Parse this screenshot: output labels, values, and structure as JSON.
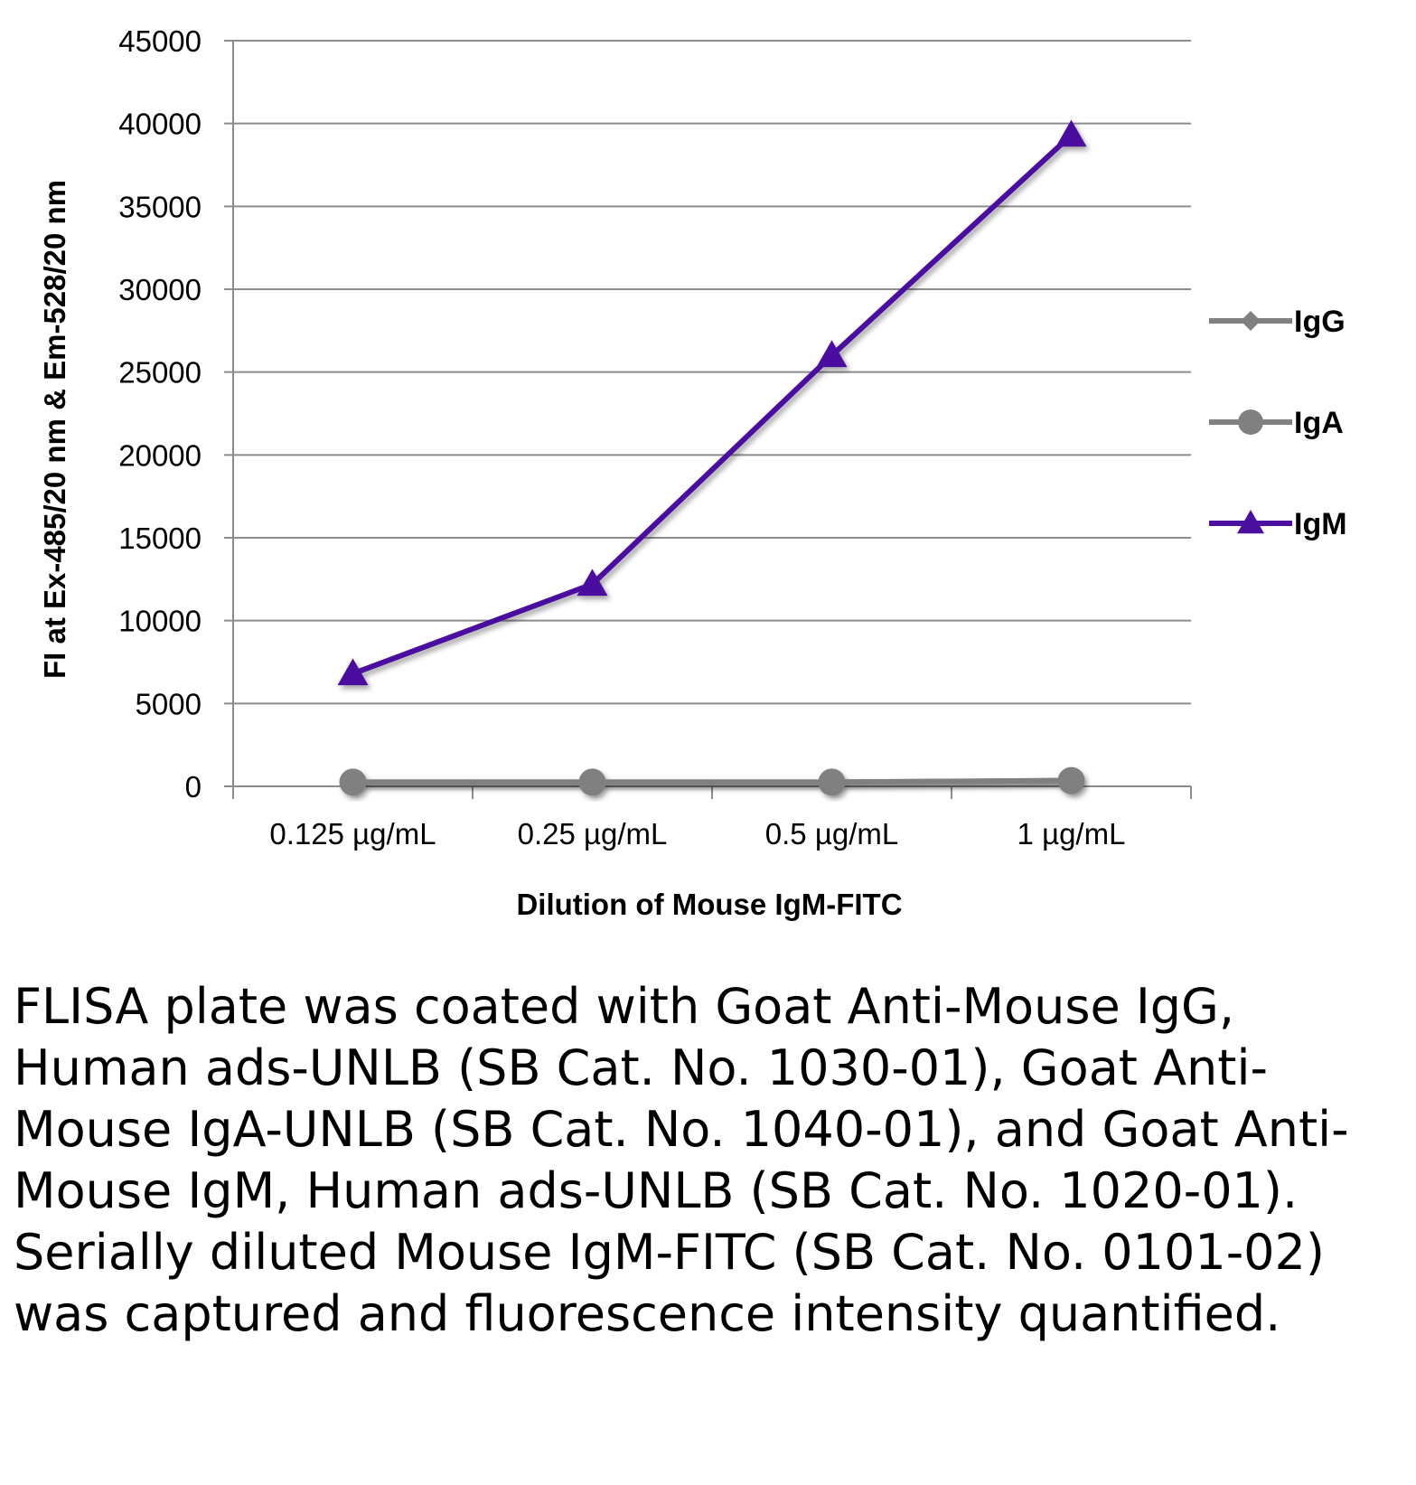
{
  "chart_data": {
    "type": "line",
    "categories": [
      "0.125 µg/mL",
      "0.25 µg/mL",
      "0.5 µg/mL",
      "1 µg/mL"
    ],
    "xlabel": "Dilution of Mouse IgM-FITC",
    "ylabel": "FI at Ex-485/20 nm & Em-528/20 nm",
    "ylim": [
      0,
      45000
    ],
    "yticks": [
      0,
      5000,
      10000,
      15000,
      20000,
      25000,
      30000,
      35000,
      40000,
      45000
    ],
    "grid": true,
    "legend": "right",
    "series": [
      {
        "name": "IgG",
        "values": [
          250,
          250,
          250,
          350
        ],
        "color": "#808080",
        "marker": "diamond"
      },
      {
        "name": "IgA",
        "values": [
          250,
          250,
          250,
          350
        ],
        "color": "#808080",
        "marker": "circle"
      },
      {
        "name": "IgM",
        "values": [
          6800,
          12200,
          26000,
          39300
        ],
        "color": "#4b0fa0",
        "marker": "triangle"
      }
    ]
  },
  "caption": "FLISA plate was coated with Goat Anti-Mouse IgG, Human ads-UNLB (SB Cat. No. 1030-01), Goat Anti-Mouse IgA-UNLB (SB Cat. No. 1040-01), and Goat Anti-Mouse IgM, Human ads-UNLB (SB Cat. No. 1020-01). Serially diluted Mouse IgM-FITC (SB Cat. No. 0101-02) was captured and fluorescence intensity quantified."
}
